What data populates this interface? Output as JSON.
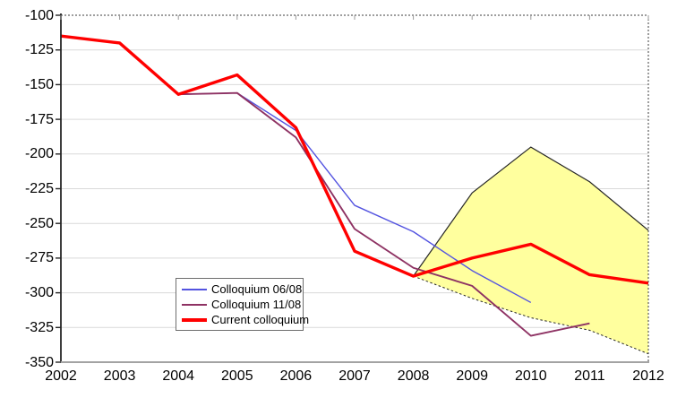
{
  "chart_data": {
    "type": "line",
    "x": [
      "2002",
      "2003",
      "2004",
      "2005",
      "2006",
      "2007",
      "2008",
      "2009",
      "2010",
      "2011",
      "2012"
    ],
    "y_ticks": [
      -100,
      -125,
      -150,
      -175,
      -200,
      -225,
      -250,
      -275,
      -300,
      -325,
      -350
    ],
    "ylim": [
      -350,
      -100
    ],
    "grid": "horizontal",
    "legend_position": "inside bottom-left",
    "colors": {
      "grid": "#d9d9d9",
      "y_axis": "#262626",
      "x_axis": "#a3a3a3",
      "dotted_border": "#3d3d3d",
      "band_fill": "#ffff9e",
      "band_edge": "#262626"
    },
    "series": [
      {
        "name": "Colloquium 06/08",
        "color": "#5353e0",
        "stroke_width": 1.4,
        "values": [
          -115,
          -120,
          -157,
          -156,
          -183,
          -237,
          -256,
          -284,
          -307,
          null,
          null
        ]
      },
      {
        "name": "Colloquium 11/08",
        "color": "#8e3263",
        "stroke_width": 1.9,
        "values": [
          -115,
          -120,
          -157,
          -156,
          -188,
          -254,
          -282,
          -295,
          -331,
          -322,
          null
        ]
      },
      {
        "name": "Current colloquium",
        "color": "#ff0000",
        "stroke_width": 3.4,
        "values": [
          -115,
          -120,
          -157,
          -143,
          -181,
          -270,
          -288,
          -275,
          -265,
          -287,
          -293
        ]
      }
    ],
    "band": {
      "name": "uncertainty-band",
      "x": [
        "2008",
        "2009",
        "2010",
        "2011",
        "2012"
      ],
      "upper": [
        -288,
        -228,
        -195,
        -220,
        -255
      ],
      "lower": [
        -288,
        -304,
        -318,
        -327,
        -344
      ]
    }
  }
}
